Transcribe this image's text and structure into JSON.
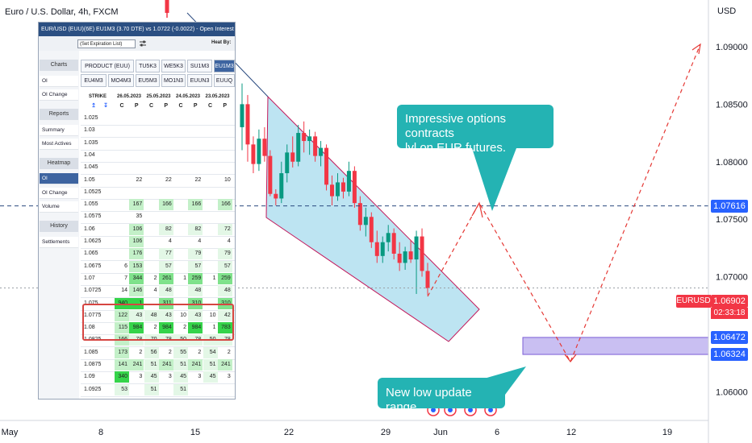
{
  "title": "Euro / U.S. Dollar, 4h, FXCM",
  "currency": "USD",
  "price_axis": {
    "ticks": [
      "1.09000",
      "1.08500",
      "1.08000",
      "1.07500",
      "1.07000",
      "1.06000"
    ],
    "tags": [
      {
        "label": "1.07616",
        "value": 1.07616,
        "color": "#2962ff"
      },
      {
        "label": "1.06472",
        "value": 1.06472,
        "color": "#2962ff"
      },
      {
        "label": "1.06324",
        "value": 1.06324,
        "color": "#2962ff"
      }
    ],
    "current": {
      "pair": "EURUSD",
      "price": "1.06902",
      "timer": "02:33:18",
      "color": "#f23645"
    }
  },
  "time_axis": {
    "labels": [
      "May",
      "8",
      "15",
      "22",
      "29",
      "Jun",
      "6",
      "12",
      "19"
    ]
  },
  "annotations": {
    "callout_top": [
      "Impressive options contracts",
      " lvl on EUR futures."
    ],
    "callout_bottom": "New low update range",
    "callout_color": "#24b3b3",
    "channel_color": "#a7dbee",
    "target_box_color": "#c9bff2"
  },
  "chart_data": {
    "type": "candlestick",
    "title": "Euro / U.S. Dollar, 4h, FXCM",
    "ylabel": "USD",
    "ylim": [
      1.0575,
      1.0935
    ],
    "x_ticks": [
      "May",
      "8",
      "15",
      "22",
      "29",
      "Jun",
      "6",
      "12",
      "19"
    ],
    "horizontal_levels": [
      1.07616,
      1.06902
    ],
    "target_range": [
      1.06324,
      1.06472
    ],
    "projection_path": [
      {
        "x": "May 31",
        "y": 1.07
      },
      {
        "x": "Jun 2",
        "y": 1.0765
      },
      {
        "x": "Jun 11",
        "y": 1.063
      },
      {
        "x": "Jun 19",
        "y": 1.0905
      }
    ],
    "candles": [
      {
        "o": 1.083,
        "h": 1.0868,
        "l": 1.081,
        "c": 1.085
      },
      {
        "o": 1.085,
        "h": 1.0858,
        "l": 1.08,
        "c": 1.0815
      },
      {
        "o": 1.0815,
        "h": 1.0822,
        "l": 1.079,
        "c": 1.0798
      },
      {
        "o": 1.0798,
        "h": 1.0828,
        "l": 1.0792,
        "c": 1.082
      },
      {
        "o": 1.082,
        "h": 1.083,
        "l": 1.08,
        "c": 1.0805
      },
      {
        "o": 1.0805,
        "h": 1.081,
        "l": 1.077,
        "c": 1.0772
      },
      {
        "o": 1.0772,
        "h": 1.0776,
        "l": 1.0762,
        "c": 1.0768
      },
      {
        "o": 1.0768,
        "h": 1.08,
        "l": 1.0764,
        "c": 1.079
      },
      {
        "o": 1.079,
        "h": 1.0815,
        "l": 1.0782,
        "c": 1.0808
      },
      {
        "o": 1.0808,
        "h": 1.0822,
        "l": 1.0795,
        "c": 1.08
      },
      {
        "o": 1.08,
        "h": 1.0832,
        "l": 1.0796,
        "c": 1.0825
      },
      {
        "o": 1.0825,
        "h": 1.0835,
        "l": 1.0808,
        "c": 1.0818
      },
      {
        "o": 1.0818,
        "h": 1.0828,
        "l": 1.0806,
        "c": 1.0822
      },
      {
        "o": 1.0822,
        "h": 1.0826,
        "l": 1.08,
        "c": 1.0805
      },
      {
        "o": 1.0805,
        "h": 1.0818,
        "l": 1.0796,
        "c": 1.0812
      },
      {
        "o": 1.0812,
        "h": 1.0815,
        "l": 1.0775,
        "c": 1.078
      },
      {
        "o": 1.078,
        "h": 1.0788,
        "l": 1.0762,
        "c": 1.077
      },
      {
        "o": 1.077,
        "h": 1.079,
        "l": 1.0766,
        "c": 1.0782
      },
      {
        "o": 1.0782,
        "h": 1.0786,
        "l": 1.0768,
        "c": 1.0774
      },
      {
        "o": 1.0774,
        "h": 1.08,
        "l": 1.077,
        "c": 1.0792
      },
      {
        "o": 1.0792,
        "h": 1.0796,
        "l": 1.076,
        "c": 1.0764
      },
      {
        "o": 1.0764,
        "h": 1.077,
        "l": 1.074,
        "c": 1.0745
      },
      {
        "o": 1.0745,
        "h": 1.076,
        "l": 1.0735,
        "c": 1.0752
      },
      {
        "o": 1.0752,
        "h": 1.0756,
        "l": 1.0725,
        "c": 1.073
      },
      {
        "o": 1.073,
        "h": 1.074,
        "l": 1.0712,
        "c": 1.0718
      },
      {
        "o": 1.0718,
        "h": 1.0735,
        "l": 1.0712,
        "c": 1.073
      },
      {
        "o": 1.073,
        "h": 1.0745,
        "l": 1.0722,
        "c": 1.0738
      },
      {
        "o": 1.0738,
        "h": 1.0742,
        "l": 1.0715,
        "c": 1.072
      },
      {
        "o": 1.072,
        "h": 1.073,
        "l": 1.0705,
        "c": 1.0712
      },
      {
        "o": 1.0712,
        "h": 1.0726,
        "l": 1.0706,
        "c": 1.0722
      },
      {
        "o": 1.0722,
        "h": 1.0732,
        "l": 1.0712,
        "c": 1.0715
      },
      {
        "o": 1.0715,
        "h": 1.074,
        "l": 1.0685,
        "c": 1.0735
      },
      {
        "o": 1.0735,
        "h": 1.0742,
        "l": 1.07,
        "c": 1.0705
      },
      {
        "o": 1.0705,
        "h": 1.0712,
        "l": 1.0684,
        "c": 1.069
      }
    ]
  },
  "panel": {
    "header": "EUR/USD (EUU)(6E) EU1M3 (3.70 DTE) vs 1.0722 (-0.0022) - Open Interest",
    "expiration_select": "(Set Expiration List)",
    "heat_label": "Heat By:",
    "nav": {
      "charts_head": "Charts",
      "charts_items": [
        "OI",
        "OI Change"
      ],
      "reports_head": "Reports",
      "reports_items": [
        "Summary",
        "Most Actives"
      ],
      "heatmap_head": "Heatmap",
      "heatmap_items": [
        "OI",
        "OI Change",
        "Volume"
      ],
      "history_head": "History",
      "history_items": [
        "Settlements"
      ]
    },
    "tabs_row1": [
      "PRODUCT (EUU)",
      "TU5K3",
      "WE5K3",
      "SU1M3",
      "EU1M3"
    ],
    "tabs_row2": [
      "EU4M3",
      "MO4M3",
      "EU5M3",
      "MO1N3",
      "EUUN3",
      "EUUQ"
    ],
    "dates": [
      "26.05.2023",
      "25.05.2023",
      "24.05.2023",
      "23.05.2023"
    ],
    "strike_label": "STRIKE",
    "cp": [
      "C",
      "P"
    ],
    "rows": [
      {
        "strike": "1.025",
        "v": [
          "",
          "",
          "",
          "",
          "",
          "",
          "",
          ""
        ]
      },
      {
        "strike": "1.03",
        "v": [
          "",
          "",
          "",
          "",
          "",
          "",
          "",
          ""
        ]
      },
      {
        "strike": "1.035",
        "v": [
          "",
          "",
          "",
          "",
          "",
          "",
          "",
          ""
        ]
      },
      {
        "strike": "1.04",
        "v": [
          "",
          "",
          "",
          "",
          "",
          "",
          "",
          ""
        ]
      },
      {
        "strike": "1.045",
        "v": [
          "",
          "",
          "",
          "",
          "",
          "",
          "",
          ""
        ]
      },
      {
        "strike": "1.05",
        "v": [
          "",
          "22",
          "",
          "22",
          "",
          "22",
          "",
          "10"
        ]
      },
      {
        "strike": "1.0525",
        "v": [
          "",
          "",
          "",
          "",
          "",
          "",
          "",
          ""
        ]
      },
      {
        "strike": "1.055",
        "v": [
          "",
          "167",
          "",
          "166",
          "",
          "166",
          "",
          "166"
        ]
      },
      {
        "strike": "1.0575",
        "v": [
          "",
          "35",
          "",
          "",
          "",
          "",
          "",
          ""
        ]
      },
      {
        "strike": "1.06",
        "v": [
          "",
          "106",
          "",
          "82",
          "",
          "82",
          "",
          "72"
        ]
      },
      {
        "strike": "1.0625",
        "v": [
          "",
          "106",
          "",
          "4",
          "",
          "4",
          "",
          "4"
        ]
      },
      {
        "strike": "1.065",
        "v": [
          "",
          "176",
          "",
          "77",
          "",
          "79",
          "",
          "79"
        ]
      },
      {
        "strike": "1.0675",
        "v": [
          "6",
          "153",
          "",
          "57",
          "",
          "57",
          "",
          "57"
        ]
      },
      {
        "strike": "1.07",
        "v": [
          "7",
          "344",
          "2",
          "261",
          "1",
          "259",
          "1",
          "259"
        ]
      },
      {
        "strike": "1.0725",
        "v": [
          "14",
          "146",
          "4",
          "48",
          "",
          "48",
          "",
          "48"
        ]
      },
      {
        "strike": "1.075",
        "v": [
          "940",
          "1 894",
          "",
          "311",
          "",
          "310",
          "",
          "310"
        ]
      },
      {
        "strike": "1.0775",
        "v": [
          "122",
          "43",
          "48",
          "43",
          "10",
          "43",
          "10",
          "42"
        ]
      },
      {
        "strike": "1.08",
        "v": [
          "115",
          "984",
          "2",
          "984",
          "2",
          "984",
          "1",
          "783"
        ]
      },
      {
        "strike": "1.0825",
        "v": [
          "166",
          "78",
          "70",
          "78",
          "50",
          "78",
          "50",
          "78"
        ]
      },
      {
        "strike": "1.085",
        "v": [
          "173",
          "2",
          "56",
          "2",
          "55",
          "2",
          "54",
          "2"
        ]
      },
      {
        "strike": "1.0875",
        "v": [
          "141",
          "241",
          "51",
          "241",
          "51",
          "241",
          "51",
          "241"
        ]
      },
      {
        "strike": "1.09",
        "v": [
          "340",
          "3",
          "45",
          "3",
          "45",
          "3",
          "45",
          "3"
        ]
      },
      {
        "strike": "1.0925",
        "v": [
          "53",
          "",
          "51",
          "",
          "51",
          "",
          "",
          ""
        ]
      }
    ]
  }
}
